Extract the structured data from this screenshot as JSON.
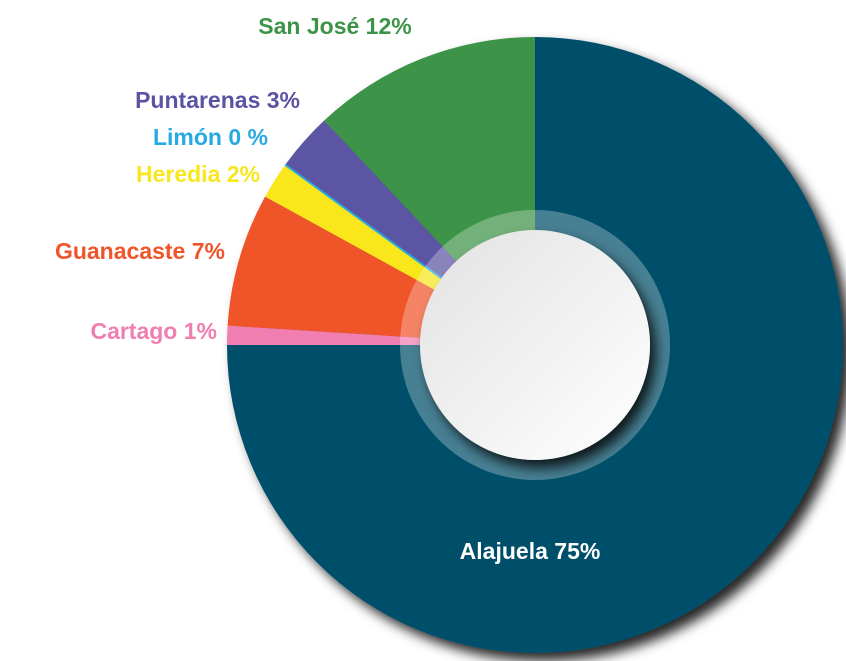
{
  "chart_data": {
    "type": "donut",
    "categories": [
      "Alajuela",
      "Cartago",
      "Guanacaste",
      "Heredia",
      "Limón",
      "Puntarenas",
      "San José"
    ],
    "values": [
      75,
      1,
      7,
      2,
      0,
      3,
      12
    ],
    "value_labels": [
      "75%",
      "1%",
      "7%",
      "2%",
      "0 %",
      "3%",
      "12%"
    ],
    "colors": [
      "#064f6a",
      "#f07eb0",
      "#f0542a",
      "#f9e71e",
      "#27aae1",
      "#5c54a3",
      "#3c9448"
    ]
  }
}
